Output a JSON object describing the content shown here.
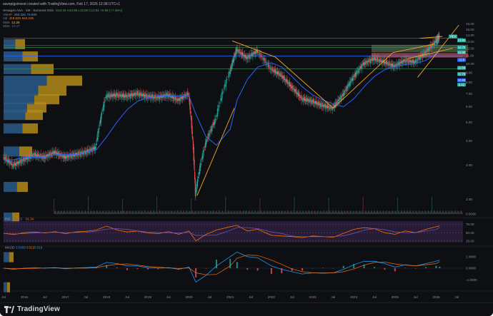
{
  "header": {
    "text": "savepigsinvest created with TradingView.com, Feb 17, 2026 12:38 UTC+1"
  },
  "legend": {
    "symbol_line": "Hexagon ASA · 1W · Euronext Oslo",
    "ohlc": "O13.15  H13.95  L13.00  C13.81  +0.95 (+7.36%)",
    "vwap_label": "VWAP",
    "vwap_value": "256.32K  79.98K",
    "vol_label": "Vol",
    "vol_value": "419.52K  943.24K",
    "sma1_label": "SMA",
    "sma1_value": "12.26",
    "sma2_label": "SMA",
    "sma2_value": "10.37"
  },
  "rsi": {
    "label": "RSI",
    "value1": "70.52",
    "value2": "61.34"
  },
  "macd": {
    "label": "MACD",
    "value1": "0.0959",
    "value2": "0.612",
    "value3": "0.519"
  },
  "brand": {
    "name": "TradingView"
  },
  "colors": {
    "up": "#26a69a",
    "down": "#ef5350",
    "sma1": "#f7c948",
    "sma2": "#2962ff",
    "trend": "#f5a623",
    "rsi": "#7e57c2",
    "macd": "#2196f3",
    "signal": "#ff6d00"
  },
  "chart_data": {
    "type": "candlestick",
    "x_ticks": [
      "Jul",
      "2016",
      "Jul",
      "2017",
      "Jul",
      "2018",
      "Jul",
      "2019",
      "Jul",
      "2020",
      "Jul",
      "2021",
      "Jul",
      "2022",
      "Jul",
      "2023",
      "Jul",
      "2024",
      "Jul",
      "2025",
      "Jul",
      "2026",
      "Jul"
    ],
    "price_axis": {
      "scale": "log",
      "ticks": [
        "16.00",
        "15.00",
        "14.00",
        "13.00",
        "12.00",
        "11.00",
        "10.00",
        "9.00",
        "8.00",
        "7.00",
        "6.00",
        "5.00",
        "4.00",
        "3.00",
        "2.00",
        "1.00",
        "0.0000"
      ]
    },
    "price_labels": [
      {
        "text": "HEX",
        "value": 13.81,
        "color": "#26a69a"
      },
      {
        "text": "13.81",
        "value": 13.81,
        "color": "#26a69a"
      },
      {
        "text": "12.70",
        "value": 12.7,
        "color": "#26a69a"
      },
      {
        "text": "12.00",
        "value": 12.0,
        "color": "#26a69a"
      },
      {
        "text": "12.0",
        "value": 12.05,
        "color": "#2962ff"
      },
      {
        "text": "11.50",
        "value": 11.5,
        "color": "#26a69a"
      },
      {
        "text": "11.75",
        "value": 11.75,
        "color": "#26a69a"
      },
      {
        "text": "10.93",
        "value": 10.93,
        "color": "#2962ff"
      },
      {
        "text": "9.42",
        "value": 9.42,
        "color": "#26a69a"
      }
    ],
    "horizontal_levels": [
      13.5,
      12.4,
      12.1,
      10.93,
      9.42
    ],
    "price_series": {
      "x": [
        "2015-07",
        "2015-10",
        "2016-01",
        "2016-04",
        "2016-07",
        "2016-10",
        "2017-01",
        "2017-04",
        "2017-07",
        "2017-10",
        "2018-01",
        "2018-04",
        "2018-07",
        "2018-10",
        "2019-01",
        "2019-04",
        "2019-07",
        "2019-10",
        "2020-01",
        "2020-03",
        "2020-06",
        "2020-09",
        "2021-01",
        "2021-03",
        "2021-06",
        "2021-09",
        "2022-01",
        "2022-04",
        "2022-07",
        "2022-10",
        "2023-01",
        "2023-04",
        "2023-07",
        "2023-10",
        "2024-01",
        "2024-04",
        "2024-07",
        "2024-10",
        "2025-01",
        "2025-04",
        "2025-07",
        "2025-10",
        "2026-01",
        "2026-02"
      ],
      "close": [
        3.3,
        3.0,
        3.2,
        3.4,
        3.3,
        3.5,
        3.3,
        3.4,
        3.5,
        3.7,
        6.8,
        6.9,
        6.8,
        7.0,
        6.8,
        6.7,
        6.9,
        6.5,
        7.0,
        2.1,
        3.9,
        5.2,
        9.0,
        11.8,
        10.7,
        11.6,
        9.4,
        8.7,
        7.6,
        6.6,
        6.4,
        6.1,
        5.9,
        6.9,
        8.5,
        10.0,
        10.6,
        10.2,
        9.7,
        10.4,
        10.2,
        11.4,
        13.0,
        13.81
      ]
    },
    "sma_long": {
      "name": "SMA",
      "values": [
        3.2,
        3.2,
        3.3,
        3.3,
        3.3,
        3.4,
        3.4,
        3.4,
        3.5,
        3.6,
        4.2,
        5.0,
        5.8,
        6.4,
        6.7,
        6.8,
        6.8,
        6.8,
        6.8,
        5.5,
        4.2,
        3.8,
        4.6,
        6.5,
        8.3,
        9.6,
        10.1,
        9.6,
        8.6,
        7.6,
        6.9,
        6.5,
        6.2,
        6.0,
        6.6,
        7.6,
        8.6,
        9.3,
        9.7,
        9.9,
        10.0,
        10.4,
        11.2,
        11.6
      ]
    },
    "rsi_series": [
      48,
      44,
      50,
      52,
      49,
      53,
      47,
      52,
      54,
      58,
      70,
      58,
      52,
      55,
      49,
      47,
      53,
      45,
      55,
      25,
      45,
      58,
      68,
      72,
      55,
      60,
      42,
      40,
      38,
      35,
      40,
      38,
      36,
      48,
      60,
      65,
      62,
      50,
      45,
      55,
      50,
      60,
      68,
      70.52
    ],
    "macd_series": [
      0.0,
      -0.1,
      0.0,
      0.05,
      0.0,
      0.05,
      -0.05,
      0.02,
      0.05,
      0.1,
      0.5,
      0.4,
      0.2,
      0.2,
      0.05,
      0.0,
      0.05,
      -0.1,
      0.1,
      -1.2,
      -0.6,
      0.2,
      1.0,
      1.4,
      1.0,
      0.9,
      0.2,
      -0.1,
      -0.3,
      -0.5,
      -0.4,
      -0.4,
      -0.4,
      -0.1,
      0.3,
      0.6,
      0.6,
      0.4,
      0.1,
      0.3,
      0.2,
      0.4,
      0.6,
      0.7
    ]
  }
}
